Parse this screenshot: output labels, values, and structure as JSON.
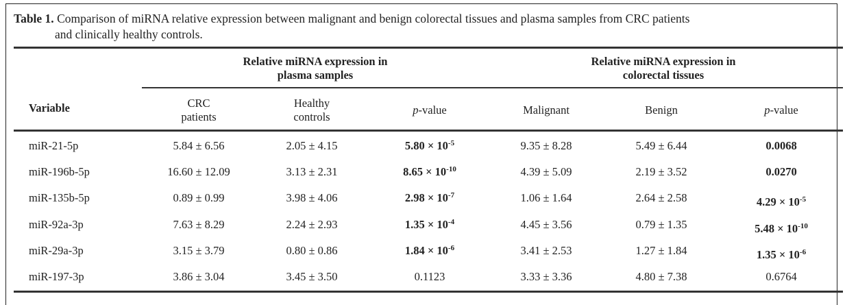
{
  "caption": {
    "label": "Table 1.",
    "text_line1": "Comparison of miRNA relative expression between malignant and benign colorectal tissues and plasma samples from CRC patients",
    "text_line2": "and clinically healthy controls."
  },
  "header": {
    "variable": "Variable",
    "group_plasma_line1": "Relative miRNA expression in",
    "group_plasma_line2": "plasma samples",
    "group_tissue_line1": "Relative miRNA expression in",
    "group_tissue_line2": "colorectal tissues",
    "crc_line1": "CRC",
    "crc_line2": "patients",
    "healthy_line1": "Healthy",
    "healthy_line2": "controls",
    "pvalue_italic": "p",
    "pvalue_rest": "-value",
    "malignant": "Malignant",
    "benign": "Benign"
  },
  "rows": [
    {
      "variable": "miR-21-5p",
      "crc": "5.84 ± 6.56",
      "healthy": "2.05 ± 4.15",
      "p_plasma": {
        "mant": "5.80 × 10",
        "exp": "-5",
        "bold": true
      },
      "malignant": "9.35 ± 8.28",
      "benign": "5.49 ± 6.44",
      "p_tissue": {
        "mant": "0.0068",
        "exp": "",
        "bold": true
      }
    },
    {
      "variable": "miR-196b-5p",
      "crc": "16.60 ± 12.09",
      "healthy": "3.13 ± 2.31",
      "p_plasma": {
        "mant": "8.65 × 10",
        "exp": "-10",
        "bold": true
      },
      "malignant": "4.39 ± 5.09",
      "benign": "2.19 ± 3.52",
      "p_tissue": {
        "mant": "0.0270",
        "exp": "",
        "bold": true
      }
    },
    {
      "variable": "miR-135b-5p",
      "crc": "0.89 ± 0.99",
      "healthy": "3.98 ± 4.06",
      "p_plasma": {
        "mant": "2.98 × 10",
        "exp": "-7",
        "bold": true
      },
      "malignant": "1.06 ± 1.64",
      "benign": "2.64 ± 2.58",
      "p_tissue": {
        "mant": "4.29 × 10",
        "exp": "-5",
        "bold": true
      }
    },
    {
      "variable": "miR-92a-3p",
      "crc": "7.63 ± 8.29",
      "healthy": "2.24 ± 2.93",
      "p_plasma": {
        "mant": "1.35 × 10",
        "exp": "-4",
        "bold": true
      },
      "malignant": "4.45 ± 3.56",
      "benign": "0.79 ± 1.35",
      "p_tissue": {
        "mant": "5.48 × 10",
        "exp": "-10",
        "bold": true
      }
    },
    {
      "variable": "miR-29a-3p",
      "crc": "3.15 ± 3.79",
      "healthy": "0.80 ± 0.86",
      "p_plasma": {
        "mant": "1.84 × 10",
        "exp": "-6",
        "bold": true
      },
      "malignant": "3.41 ± 2.53",
      "benign": "1.27 ± 1.84",
      "p_tissue": {
        "mant": "1.35 × 10",
        "exp": "-6",
        "bold": true
      }
    },
    {
      "variable": "miR-197-3p",
      "crc": "3.86 ± 3.04",
      "healthy": "3.45 ± 3.50",
      "p_plasma": {
        "mant": "0.1123",
        "exp": "",
        "bold": false
      },
      "malignant": "3.33 ± 3.36",
      "benign": "4.80 ± 7.38",
      "p_tissue": {
        "mant": "0.6764",
        "exp": "",
        "bold": false
      }
    }
  ]
}
